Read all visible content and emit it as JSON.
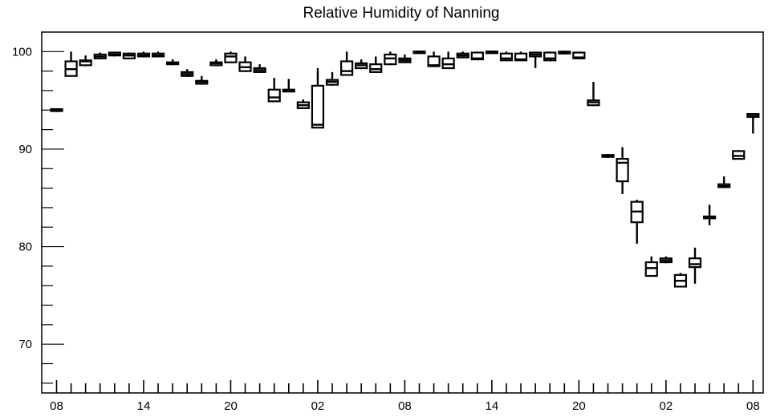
{
  "chart_data": {
    "type": "box",
    "title": "Relative Humidity of Nanning",
    "xlabel": "",
    "ylabel": "",
    "ylim": [
      65,
      102
    ],
    "y_major_ticks": [
      70,
      80,
      90,
      100
    ],
    "y_minor_step": 2,
    "grid": false,
    "x_tick_labels": [
      "08",
      "14",
      "20",
      "02",
      "08",
      "14",
      "20",
      "02",
      "08"
    ],
    "series": [
      {
        "boxes": [
          {
            "x": 0,
            "q1": 93.9,
            "median": 94.0,
            "q3": 94.1,
            "min": 93.8,
            "max": 94.1
          },
          {
            "x": 1,
            "q1": 97.5,
            "median": 98.2,
            "q3": 99.0,
            "min": 97.5,
            "max": 100.0
          },
          {
            "x": 2,
            "q1": 98.6,
            "median": 99.0,
            "q3": 99.1,
            "min": 98.5,
            "max": 99.6
          },
          {
            "x": 3,
            "q1": 99.3,
            "median": 99.5,
            "q3": 99.7,
            "min": 99.2,
            "max": 99.9
          },
          {
            "x": 4,
            "q1": 99.6,
            "median": 99.7,
            "q3": 99.9,
            "min": 99.5,
            "max": 100.0
          },
          {
            "x": 5,
            "q1": 99.3,
            "median": 99.6,
            "q3": 99.8,
            "min": 99.3,
            "max": 99.9
          },
          {
            "x": 6,
            "q1": 99.5,
            "median": 99.6,
            "q3": 99.8,
            "min": 99.4,
            "max": 100.0
          },
          {
            "x": 7,
            "q1": 99.5,
            "median": 99.6,
            "q3": 99.8,
            "min": 99.4,
            "max": 100.0
          },
          {
            "x": 8,
            "q1": 98.7,
            "median": 98.8,
            "q3": 98.9,
            "min": 98.6,
            "max": 99.2
          },
          {
            "x": 9,
            "q1": 97.5,
            "median": 97.7,
            "q3": 97.9,
            "min": 97.4,
            "max": 98.2
          },
          {
            "x": 10,
            "q1": 96.7,
            "median": 96.9,
            "q3": 97.0,
            "min": 96.6,
            "max": 97.5
          },
          {
            "x": 11,
            "q1": 98.6,
            "median": 98.8,
            "q3": 98.9,
            "min": 98.5,
            "max": 99.2
          },
          {
            "x": 12,
            "q1": 98.9,
            "median": 99.5,
            "q3": 99.8,
            "min": 98.9,
            "max": 100.0
          },
          {
            "x": 13,
            "q1": 98.0,
            "median": 98.4,
            "q3": 98.9,
            "min": 97.9,
            "max": 99.5
          },
          {
            "x": 14,
            "q1": 97.9,
            "median": 98.1,
            "q3": 98.3,
            "min": 97.9,
            "max": 98.7
          },
          {
            "x": 15,
            "q1": 94.9,
            "median": 95.3,
            "q3": 96.1,
            "min": 94.9,
            "max": 97.3
          },
          {
            "x": 16,
            "q1": 95.9,
            "median": 96.0,
            "q3": 96.1,
            "min": 95.9,
            "max": 97.2
          },
          {
            "x": 17,
            "q1": 94.2,
            "median": 94.5,
            "q3": 94.8,
            "min": 94.2,
            "max": 95.1
          },
          {
            "x": 18,
            "q1": 92.2,
            "median": 92.5,
            "q3": 96.5,
            "min": 92.2,
            "max": 98.3
          },
          {
            "x": 19,
            "q1": 96.6,
            "median": 96.9,
            "q3": 97.1,
            "min": 96.5,
            "max": 97.9
          },
          {
            "x": 20,
            "q1": 97.6,
            "median": 98.0,
            "q3": 99.0,
            "min": 97.6,
            "max": 100.0
          },
          {
            "x": 21,
            "q1": 98.3,
            "median": 98.6,
            "q3": 98.8,
            "min": 98.2,
            "max": 99.2
          },
          {
            "x": 22,
            "q1": 97.9,
            "median": 98.2,
            "q3": 98.7,
            "min": 97.9,
            "max": 99.5
          },
          {
            "x": 23,
            "q1": 98.7,
            "median": 99.3,
            "q3": 99.7,
            "min": 98.6,
            "max": 100.0
          },
          {
            "x": 24,
            "q1": 98.9,
            "median": 99.1,
            "q3": 99.3,
            "min": 98.9,
            "max": 99.7
          },
          {
            "x": 25,
            "q1": 99.9,
            "median": 100.0,
            "q3": 100.0,
            "min": 99.9,
            "max": 100.0
          },
          {
            "x": 26,
            "q1": 98.5,
            "median": 98.6,
            "q3": 99.5,
            "min": 98.5,
            "max": 100.0
          },
          {
            "x": 27,
            "q1": 98.3,
            "median": 98.7,
            "q3": 99.3,
            "min": 98.3,
            "max": 100.0
          },
          {
            "x": 28,
            "q1": 99.4,
            "median": 99.6,
            "q3": 99.8,
            "min": 99.4,
            "max": 100.0
          },
          {
            "x": 29,
            "q1": 99.2,
            "median": 99.3,
            "q3": 99.9,
            "min": 99.2,
            "max": 100.0
          },
          {
            "x": 30,
            "q1": 99.9,
            "median": 100.0,
            "q3": 100.0,
            "min": 99.9,
            "max": 100.0
          },
          {
            "x": 31,
            "q1": 99.1,
            "median": 99.3,
            "q3": 99.8,
            "min": 99.1,
            "max": 100.0
          },
          {
            "x": 32,
            "q1": 99.1,
            "median": 99.2,
            "q3": 99.8,
            "min": 99.1,
            "max": 100.0
          },
          {
            "x": 33,
            "q1": 99.5,
            "median": 99.7,
            "q3": 99.9,
            "min": 98.3,
            "max": 100.0
          },
          {
            "x": 34,
            "q1": 99.1,
            "median": 99.3,
            "q3": 99.9,
            "min": 99.0,
            "max": 100.0
          },
          {
            "x": 35,
            "q1": 99.8,
            "median": 99.9,
            "q3": 100.0,
            "min": 99.7,
            "max": 100.0
          },
          {
            "x": 36,
            "q1": 99.3,
            "median": 99.4,
            "q3": 99.9,
            "min": 99.3,
            "max": 100.0
          },
          {
            "x": 37,
            "q1": 94.5,
            "median": 94.8,
            "q3": 95.0,
            "min": 94.5,
            "max": 96.9
          },
          {
            "x": 38,
            "q1": 89.2,
            "median": 89.3,
            "q3": 89.4,
            "min": 89.1,
            "max": 89.5
          },
          {
            "x": 39,
            "q1": 86.7,
            "median": 88.6,
            "q3": 89.0,
            "min": 85.4,
            "max": 90.2
          },
          {
            "x": 40,
            "q1": 82.5,
            "median": 83.6,
            "q3": 84.6,
            "min": 80.3,
            "max": 84.8
          },
          {
            "x": 41,
            "q1": 77.0,
            "median": 77.8,
            "q3": 78.4,
            "min": 77.0,
            "max": 79.0
          },
          {
            "x": 42,
            "q1": 78.4,
            "median": 78.6,
            "q3": 78.8,
            "min": 78.3,
            "max": 79.0
          },
          {
            "x": 43,
            "q1": 75.9,
            "median": 76.5,
            "q3": 77.1,
            "min": 75.9,
            "max": 77.3
          },
          {
            "x": 44,
            "q1": 77.9,
            "median": 78.2,
            "q3": 78.8,
            "min": 76.2,
            "max": 79.9
          },
          {
            "x": 45,
            "q1": 82.9,
            "median": 83.0,
            "q3": 83.1,
            "min": 82.2,
            "max": 84.3
          },
          {
            "x": 46,
            "q1": 86.1,
            "median": 86.2,
            "q3": 86.4,
            "min": 86.0,
            "max": 87.2
          },
          {
            "x": 47,
            "q1": 89.0,
            "median": 89.3,
            "q3": 89.8,
            "min": 89.0,
            "max": 89.9
          },
          {
            "x": 48,
            "q1": 93.3,
            "median": 93.4,
            "q3": 93.6,
            "min": 91.6,
            "max": 93.6
          }
        ]
      }
    ]
  }
}
